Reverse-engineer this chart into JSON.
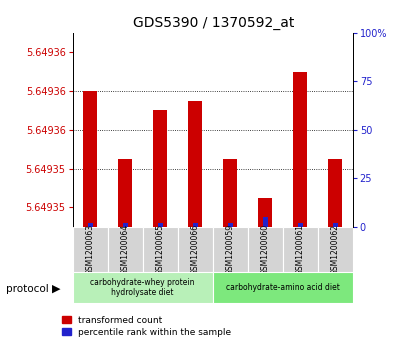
{
  "title": "GDS5390 / 1370592_at",
  "samples": [
    "GSM1200063",
    "GSM1200064",
    "GSM1200065",
    "GSM1200066",
    "GSM1200059",
    "GSM1200060",
    "GSM1200061",
    "GSM1200062"
  ],
  "red_values": [
    5.649362,
    5.649355,
    5.64936,
    5.649361,
    5.649355,
    5.649351,
    5.649364,
    5.649355
  ],
  "blue_values": [
    2,
    2,
    2,
    2,
    2,
    5,
    2,
    2
  ],
  "ylim_min": 5.649348,
  "ylim_max": 5.649368,
  "left_yticks": [
    5.64935,
    5.649354,
    5.649358,
    5.649362,
    5.649366
  ],
  "left_ytick_labels": [
    "5.64935",
    "5.64935",
    "5.64936",
    "5.64936",
    "5.64936"
  ],
  "blue_ylim_max": 100,
  "blue_ticks": [
    0,
    25,
    50,
    75,
    100
  ],
  "protocol_groups": [
    {
      "label": "carbohydrate-whey protein\nhydrolysate diet",
      "start": 0,
      "end": 4,
      "color": "#b8f0b8"
    },
    {
      "label": "carbohydrate-amino acid diet",
      "start": 4,
      "end": 8,
      "color": "#7de87d"
    }
  ],
  "protocol_label": "protocol",
  "legend_red": "transformed count",
  "legend_blue": "percentile rank within the sample",
  "bar_color_red": "#cc0000",
  "bar_color_blue": "#2222cc",
  "tick_color_left": "#cc0000",
  "tick_color_right": "#2222cc",
  "bar_width": 0.4,
  "blue_bar_width": 0.15,
  "grid_dotted_ticks": [
    5.649354,
    5.649358,
    5.649362
  ],
  "sample_box_color": "#d4d4d4"
}
